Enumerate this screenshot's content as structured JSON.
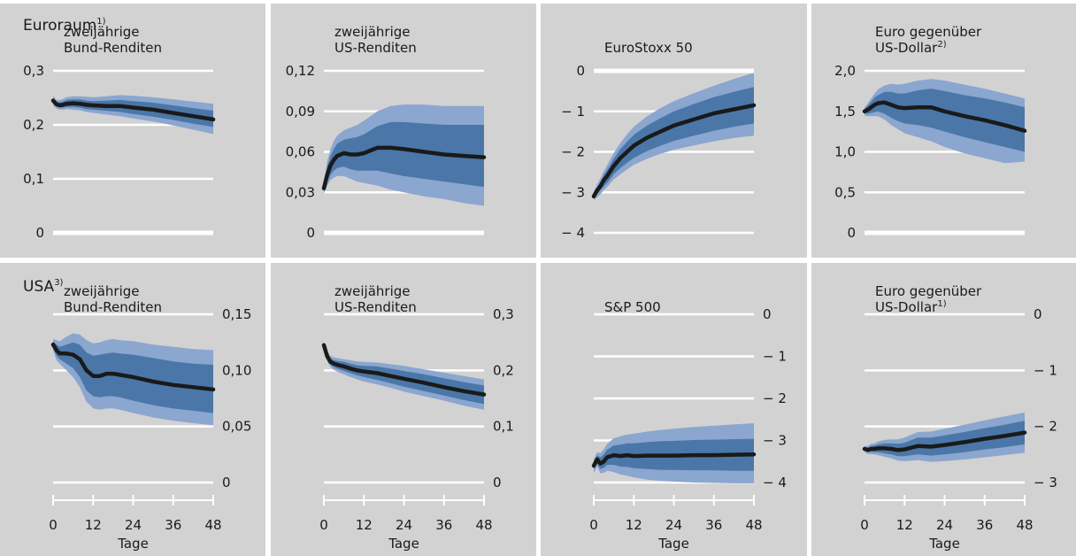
{
  "figure": {
    "row_labels": [
      {
        "text": "Euroraum",
        "sup": "1)"
      },
      {
        "text": "USA",
        "sup": "3)"
      }
    ],
    "x_axis_label": "Tage",
    "x_ticks": [
      "0",
      "12",
      "24",
      "36",
      "48"
    ]
  },
  "colors": {
    "panel_bg": "#d2d2d2",
    "band_outer": "#8ba6cf",
    "band_inner": "#4a77a8",
    "median_line": "#1a1a1a",
    "gridline": "#ffffff"
  },
  "chart_data": [
    {
      "type": "area",
      "row": "Euroraum",
      "title": [
        "zweijährige",
        "Bund-Renditen"
      ],
      "title_sup": "",
      "y_axis_side": "left",
      "ylim": [
        0,
        0.3
      ],
      "y_ticks": [
        0,
        0.1,
        0.2,
        0.3
      ],
      "y_tick_labels": [
        "0",
        "0,1",
        "0,2",
        "0,3"
      ],
      "x": [
        0,
        1,
        2,
        3,
        4,
        6,
        8,
        10,
        12,
        16,
        20,
        24,
        30,
        36,
        42,
        48
      ],
      "median": [
        0.245,
        0.238,
        0.236,
        0.237,
        0.239,
        0.24,
        0.239,
        0.237,
        0.236,
        0.235,
        0.235,
        0.232,
        0.228,
        0.222,
        0.216,
        0.21
      ],
      "inner_lower": [
        0.24,
        0.234,
        0.232,
        0.232,
        0.233,
        0.233,
        0.232,
        0.229,
        0.228,
        0.226,
        0.224,
        0.22,
        0.215,
        0.209,
        0.202,
        0.196
      ],
      "inner_upper": [
        0.25,
        0.242,
        0.242,
        0.243,
        0.246,
        0.247,
        0.247,
        0.245,
        0.244,
        0.245,
        0.246,
        0.244,
        0.241,
        0.236,
        0.231,
        0.226
      ],
      "outer_lower": [
        0.236,
        0.23,
        0.228,
        0.228,
        0.229,
        0.228,
        0.227,
        0.224,
        0.222,
        0.219,
        0.216,
        0.212,
        0.206,
        0.199,
        0.191,
        0.183
      ],
      "outer_upper": [
        0.254,
        0.246,
        0.246,
        0.248,
        0.251,
        0.253,
        0.253,
        0.252,
        0.251,
        0.253,
        0.255,
        0.254,
        0.251,
        0.247,
        0.243,
        0.239
      ]
    },
    {
      "type": "area",
      "row": "Euroraum",
      "title": [
        "zweijährige",
        "US-Renditen"
      ],
      "title_sup": "",
      "y_axis_side": "left",
      "ylim": [
        0,
        0.12
      ],
      "y_ticks": [
        0,
        0.03,
        0.06,
        0.09,
        0.12
      ],
      "y_tick_labels": [
        "0",
        "0,03",
        "0,06",
        "0,09",
        "0,12"
      ],
      "x": [
        0,
        1,
        2,
        3,
        4,
        6,
        8,
        10,
        12,
        16,
        20,
        24,
        30,
        36,
        42,
        48
      ],
      "median": [
        0.033,
        0.043,
        0.05,
        0.054,
        0.057,
        0.059,
        0.058,
        0.058,
        0.059,
        0.063,
        0.063,
        0.062,
        0.06,
        0.058,
        0.057,
        0.056
      ],
      "inner_lower": [
        0.031,
        0.038,
        0.043,
        0.046,
        0.048,
        0.049,
        0.047,
        0.046,
        0.046,
        0.046,
        0.044,
        0.042,
        0.04,
        0.038,
        0.036,
        0.034
      ],
      "inner_upper": [
        0.036,
        0.049,
        0.057,
        0.062,
        0.066,
        0.069,
        0.07,
        0.071,
        0.073,
        0.079,
        0.082,
        0.082,
        0.081,
        0.08,
        0.08,
        0.08
      ],
      "outer_lower": [
        0.029,
        0.035,
        0.039,
        0.041,
        0.042,
        0.042,
        0.04,
        0.038,
        0.037,
        0.035,
        0.032,
        0.03,
        0.027,
        0.025,
        0.022,
        0.02
      ],
      "outer_upper": [
        0.038,
        0.053,
        0.062,
        0.068,
        0.072,
        0.076,
        0.078,
        0.08,
        0.083,
        0.09,
        0.094,
        0.095,
        0.095,
        0.094,
        0.094,
        0.094
      ]
    },
    {
      "type": "area",
      "row": "Euroraum",
      "title": [
        "EuroStoxx 50"
      ],
      "title_sup": "",
      "y_axis_side": "left",
      "ylim": [
        -4,
        0
      ],
      "y_ticks": [
        -4,
        -3,
        -2,
        -1,
        0
      ],
      "y_tick_labels": [
        "− 4",
        "− 3",
        "− 2",
        "− 1",
        "0"
      ],
      "x": [
        0,
        1,
        2,
        3,
        4,
        6,
        8,
        10,
        12,
        16,
        20,
        24,
        30,
        36,
        42,
        48
      ],
      "median": [
        -3.1,
        -2.95,
        -2.85,
        -2.7,
        -2.6,
        -2.35,
        -2.15,
        -2.0,
        -1.85,
        -1.65,
        -1.5,
        -1.35,
        -1.2,
        -1.05,
        -0.95,
        -0.85
      ],
      "inner_lower": [
        -3.15,
        -3.05,
        -2.95,
        -2.85,
        -2.77,
        -2.55,
        -2.4,
        -2.27,
        -2.15,
        -1.98,
        -1.85,
        -1.73,
        -1.6,
        -1.48,
        -1.38,
        -1.3
      ],
      "inner_upper": [
        -3.05,
        -2.88,
        -2.75,
        -2.58,
        -2.45,
        -2.17,
        -1.93,
        -1.75,
        -1.58,
        -1.35,
        -1.17,
        -1.0,
        -0.82,
        -0.65,
        -0.52,
        -0.4
      ],
      "outer_lower": [
        -3.2,
        -3.12,
        -3.05,
        -2.95,
        -2.87,
        -2.68,
        -2.55,
        -2.43,
        -2.32,
        -2.17,
        -2.05,
        -1.95,
        -1.84,
        -1.74,
        -1.66,
        -1.6
      ],
      "outer_upper": [
        -3.0,
        -2.8,
        -2.65,
        -2.48,
        -2.33,
        -2.03,
        -1.78,
        -1.57,
        -1.38,
        -1.12,
        -0.92,
        -0.75,
        -0.55,
        -0.37,
        -0.2,
        -0.05
      ]
    },
    {
      "type": "area",
      "row": "Euroraum",
      "title": [
        "Euro gegenüber",
        "US-Dollar"
      ],
      "title_sup": "2)",
      "y_axis_side": "left",
      "ylim": [
        0,
        2.0
      ],
      "y_ticks": [
        0,
        0.5,
        1.0,
        1.5,
        2.0
      ],
      "y_tick_labels": [
        "0",
        "0,5",
        "1,0",
        "1,5",
        "2,0"
      ],
      "x": [
        0,
        1,
        2,
        3,
        4,
        6,
        8,
        10,
        12,
        16,
        20,
        24,
        30,
        36,
        42,
        48
      ],
      "median": [
        1.5,
        1.52,
        1.55,
        1.58,
        1.6,
        1.61,
        1.58,
        1.55,
        1.54,
        1.55,
        1.55,
        1.5,
        1.44,
        1.39,
        1.33,
        1.26
      ],
      "inner_lower": [
        1.47,
        1.47,
        1.48,
        1.49,
        1.5,
        1.47,
        1.42,
        1.38,
        1.35,
        1.33,
        1.3,
        1.25,
        1.18,
        1.12,
        1.06,
        1.0
      ],
      "inner_upper": [
        1.53,
        1.57,
        1.62,
        1.67,
        1.7,
        1.74,
        1.74,
        1.72,
        1.72,
        1.76,
        1.78,
        1.75,
        1.7,
        1.66,
        1.61,
        1.55
      ],
      "outer_lower": [
        1.45,
        1.44,
        1.44,
        1.44,
        1.44,
        1.4,
        1.33,
        1.28,
        1.23,
        1.18,
        1.13,
        1.06,
        0.98,
        0.92,
        0.86,
        0.88
      ],
      "outer_upper": [
        1.55,
        1.6,
        1.66,
        1.72,
        1.77,
        1.82,
        1.84,
        1.83,
        1.84,
        1.88,
        1.9,
        1.88,
        1.83,
        1.78,
        1.72,
        1.66
      ]
    },
    {
      "type": "area",
      "row": "USA",
      "title": [
        "zweijährige",
        "Bund-Renditen"
      ],
      "title_sup": "",
      "y_axis_side": "right",
      "ylim": [
        0,
        0.15
      ],
      "y_ticks": [
        0,
        0.05,
        0.1,
        0.15
      ],
      "y_tick_labels": [
        "0",
        "0,05",
        "0,10",
        "0,15"
      ],
      "x": [
        0,
        1,
        2,
        3,
        4,
        6,
        8,
        10,
        12,
        14,
        16,
        18,
        20,
        24,
        30,
        36,
        42,
        48
      ],
      "median": [
        0.123,
        0.118,
        0.115,
        0.115,
        0.115,
        0.114,
        0.11,
        0.1,
        0.095,
        0.095,
        0.097,
        0.097,
        0.096,
        0.094,
        0.09,
        0.087,
        0.085,
        0.083
      ],
      "inner_lower": [
        0.12,
        0.113,
        0.11,
        0.108,
        0.106,
        0.102,
        0.094,
        0.082,
        0.077,
        0.076,
        0.077,
        0.077,
        0.076,
        0.073,
        0.069,
        0.066,
        0.064,
        0.062
      ],
      "inner_upper": [
        0.126,
        0.123,
        0.121,
        0.122,
        0.123,
        0.125,
        0.123,
        0.116,
        0.113,
        0.114,
        0.115,
        0.116,
        0.115,
        0.114,
        0.111,
        0.108,
        0.106,
        0.105
      ],
      "outer_lower": [
        0.118,
        0.109,
        0.106,
        0.103,
        0.1,
        0.094,
        0.085,
        0.072,
        0.066,
        0.065,
        0.066,
        0.066,
        0.065,
        0.062,
        0.058,
        0.055,
        0.053,
        0.051
      ],
      "outer_upper": [
        0.128,
        0.127,
        0.126,
        0.128,
        0.13,
        0.133,
        0.132,
        0.127,
        0.124,
        0.125,
        0.127,
        0.128,
        0.127,
        0.126,
        0.123,
        0.121,
        0.119,
        0.118
      ]
    },
    {
      "type": "area",
      "row": "USA",
      "title": [
        "zweijährige",
        "US-Renditen"
      ],
      "title_sup": "",
      "y_axis_side": "right",
      "ylim": [
        0,
        0.3
      ],
      "y_ticks": [
        0,
        0.1,
        0.2,
        0.3
      ],
      "y_tick_labels": [
        "0",
        "0,1",
        "0,2",
        "0,3"
      ],
      "x": [
        0,
        1,
        2,
        3,
        4,
        6,
        8,
        10,
        12,
        16,
        20,
        24,
        30,
        36,
        42,
        48
      ],
      "median": [
        0.245,
        0.225,
        0.215,
        0.212,
        0.21,
        0.207,
        0.203,
        0.2,
        0.198,
        0.195,
        0.19,
        0.185,
        0.178,
        0.17,
        0.163,
        0.157
      ],
      "inner_lower": [
        0.242,
        0.22,
        0.21,
        0.206,
        0.203,
        0.199,
        0.195,
        0.191,
        0.188,
        0.183,
        0.177,
        0.171,
        0.163,
        0.155,
        0.147,
        0.14
      ],
      "inner_upper": [
        0.248,
        0.23,
        0.221,
        0.218,
        0.217,
        0.215,
        0.212,
        0.209,
        0.208,
        0.207,
        0.203,
        0.199,
        0.193,
        0.186,
        0.179,
        0.173
      ],
      "outer_lower": [
        0.24,
        0.217,
        0.206,
        0.201,
        0.198,
        0.193,
        0.188,
        0.184,
        0.18,
        0.175,
        0.169,
        0.162,
        0.154,
        0.146,
        0.137,
        0.13
      ],
      "outer_upper": [
        0.25,
        0.234,
        0.226,
        0.223,
        0.222,
        0.22,
        0.218,
        0.216,
        0.215,
        0.214,
        0.211,
        0.208,
        0.202,
        0.196,
        0.19,
        0.184
      ]
    },
    {
      "type": "area",
      "row": "USA",
      "title": [
        "S&P 500"
      ],
      "title_sup": "",
      "y_axis_side": "right",
      "ylim": [
        -4,
        0
      ],
      "y_ticks": [
        -4,
        -3,
        -2,
        -1,
        0
      ],
      "y_tick_labels": [
        "− 4",
        "− 3",
        "− 2",
        "− 1",
        "0"
      ],
      "x": [
        0,
        1,
        2,
        3,
        4,
        6,
        8,
        10,
        12,
        16,
        20,
        24,
        30,
        36,
        42,
        48
      ],
      "median": [
        -3.6,
        -3.45,
        -3.55,
        -3.5,
        -3.4,
        -3.35,
        -3.37,
        -3.35,
        -3.37,
        -3.36,
        -3.36,
        -3.36,
        -3.35,
        -3.35,
        -3.34,
        -3.33
      ],
      "inner_lower": [
        -3.7,
        -3.55,
        -3.68,
        -3.65,
        -3.58,
        -3.58,
        -3.62,
        -3.63,
        -3.66,
        -3.68,
        -3.7,
        -3.7,
        -3.71,
        -3.71,
        -3.72,
        -3.72
      ],
      "inner_upper": [
        -3.5,
        -3.35,
        -3.4,
        -3.33,
        -3.22,
        -3.12,
        -3.1,
        -3.07,
        -3.07,
        -3.04,
        -3.02,
        -3.01,
        -2.99,
        -2.98,
        -2.97,
        -2.96
      ],
      "outer_lower": [
        -3.78,
        -3.62,
        -3.78,
        -3.77,
        -3.72,
        -3.75,
        -3.81,
        -3.84,
        -3.88,
        -3.93,
        -3.96,
        -3.98,
        -4.0,
        -4.01,
        -4.02,
        -4.02
      ],
      "outer_upper": [
        -3.45,
        -3.28,
        -3.3,
        -3.21,
        -3.08,
        -2.95,
        -2.9,
        -2.86,
        -2.84,
        -2.79,
        -2.75,
        -2.72,
        -2.68,
        -2.65,
        -2.62,
        -2.59
      ]
    },
    {
      "type": "area",
      "row": "USA",
      "title": [
        "Euro gegenüber",
        "US-Dollar"
      ],
      "title_sup": "1)",
      "y_axis_side": "right",
      "ylim": [
        -3,
        0
      ],
      "y_ticks": [
        -3,
        -2,
        -1,
        0
      ],
      "y_tick_labels": [
        "− 3",
        "− 2",
        "− 1",
        "0"
      ],
      "x": [
        0,
        1,
        2,
        3,
        4,
        6,
        8,
        10,
        12,
        16,
        20,
        24,
        30,
        36,
        42,
        48
      ],
      "median": [
        -2.4,
        -2.42,
        -2.4,
        -2.4,
        -2.39,
        -2.39,
        -2.4,
        -2.42,
        -2.41,
        -2.35,
        -2.36,
        -2.33,
        -2.28,
        -2.22,
        -2.17,
        -2.11
      ],
      "inner_lower": [
        -2.43,
        -2.46,
        -2.45,
        -2.46,
        -2.46,
        -2.48,
        -2.5,
        -2.53,
        -2.53,
        -2.5,
        -2.52,
        -2.5,
        -2.46,
        -2.41,
        -2.37,
        -2.32
      ],
      "inner_upper": [
        -2.37,
        -2.38,
        -2.35,
        -2.34,
        -2.32,
        -2.3,
        -2.3,
        -2.31,
        -2.29,
        -2.2,
        -2.2,
        -2.16,
        -2.1,
        -2.03,
        -1.97,
        -1.9
      ],
      "outer_lower": [
        -2.45,
        -2.49,
        -2.49,
        -2.5,
        -2.51,
        -2.54,
        -2.57,
        -2.61,
        -2.62,
        -2.6,
        -2.63,
        -2.62,
        -2.59,
        -2.55,
        -2.51,
        -2.47
      ],
      "outer_upper": [
        -2.35,
        -2.35,
        -2.31,
        -2.3,
        -2.27,
        -2.24,
        -2.23,
        -2.23,
        -2.2,
        -2.1,
        -2.09,
        -2.04,
        -1.97,
        -1.89,
        -1.82,
        -1.75
      ]
    }
  ]
}
